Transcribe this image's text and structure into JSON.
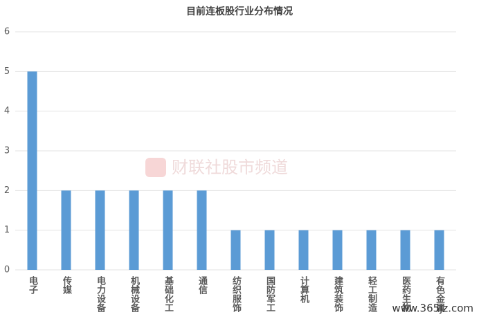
{
  "chart_data": {
    "type": "bar",
    "title": "目前连板股行业分布情况",
    "categories": [
      "电子",
      "传媒",
      "电力设备",
      "机械设备",
      "基础化工",
      "通信",
      "纺织服饰",
      "国防军工",
      "计算机",
      "建筑装饰",
      "轻工制造",
      "医药生物",
      "有色金属"
    ],
    "values": [
      5,
      2,
      2,
      2,
      2,
      2,
      1,
      1,
      1,
      1,
      1,
      1,
      1
    ],
    "color": "#5b9bd5",
    "ylim": [
      0,
      6
    ],
    "yticks": [
      0,
      1,
      2,
      3,
      4,
      5,
      6
    ],
    "grid": true,
    "watermark": "财联社股市频道",
    "source_watermark": "www.365jz.com"
  }
}
